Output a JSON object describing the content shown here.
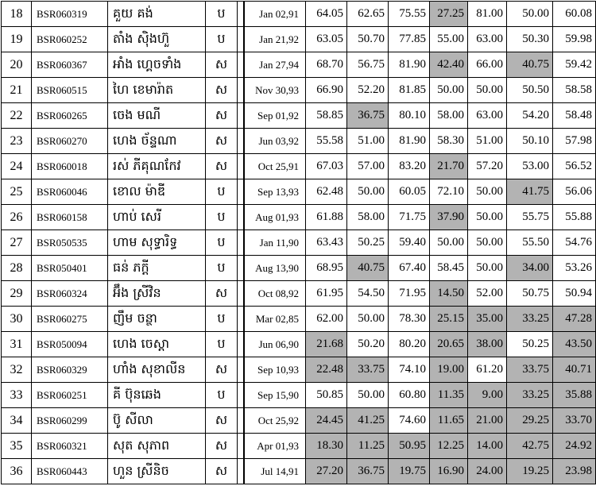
{
  "rows": [
    {
      "no": "18",
      "id": "BSR060319",
      "name": "គួយ គង់",
      "sex": "ប",
      "dob": "Jan 02,91",
      "scores": [
        "64.05",
        "62.65",
        "75.55",
        "27.25",
        "81.00",
        "50.00",
        "60.08"
      ],
      "hl": [
        3
      ]
    },
    {
      "no": "19",
      "id": "BSR060252",
      "name": "តាំង ស៊ិងហ៊ួ",
      "sex": "ប",
      "dob": "Jan 21,92",
      "scores": [
        "63.05",
        "50.70",
        "77.85",
        "55.00",
        "63.00",
        "50.30",
        "59.98"
      ],
      "hl": []
    },
    {
      "no": "20",
      "id": "BSR060367",
      "name": "អាំង ហ្គេចទាំង",
      "sex": "ស",
      "dob": "Jan 27,94",
      "scores": [
        "68.70",
        "56.75",
        "81.90",
        "42.40",
        "66.00",
        "40.75",
        "59.42"
      ],
      "hl": [
        3,
        5
      ]
    },
    {
      "no": "21",
      "id": "BSR060515",
      "name": "ហៃ ខេមារ៉ាត",
      "sex": "ស",
      "dob": "Nov 30,93",
      "scores": [
        "66.90",
        "52.20",
        "81.85",
        "50.00",
        "50.00",
        "50.50",
        "58.58"
      ],
      "hl": []
    },
    {
      "no": "22",
      "id": "BSR060265",
      "name": "ចេង មណី",
      "sex": "ស",
      "dob": "Sep 01,92",
      "scores": [
        "58.85",
        "36.75",
        "80.10",
        "58.00",
        "63.00",
        "54.20",
        "58.48"
      ],
      "hl": [
        1
      ]
    },
    {
      "no": "23",
      "id": "BSR060270",
      "name": "ហេង ច័ន្ទណា",
      "sex": "ស",
      "dob": "Jun 03,92",
      "scores": [
        "55.58",
        "51.00",
        "81.90",
        "58.30",
        "51.00",
        "50.10",
        "57.98"
      ],
      "hl": []
    },
    {
      "no": "24",
      "id": "BSR060018",
      "name": "រស់ ភីគុណកែវ",
      "sex": "ស",
      "dob": "Oct 25,91",
      "scores": [
        "67.03",
        "57.00",
        "83.20",
        "21.70",
        "57.20",
        "53.00",
        "56.52"
      ],
      "hl": [
        3
      ]
    },
    {
      "no": "25",
      "id": "BSR060046",
      "name": "ខោល ម៉ាឌី",
      "sex": "ប",
      "dob": "Sep 13,93",
      "scores": [
        "62.48",
        "50.00",
        "60.05",
        "72.10",
        "50.00",
        "41.75",
        "56.06"
      ],
      "hl": [
        5
      ]
    },
    {
      "no": "26",
      "id": "BSR060158",
      "name": "ហាប់ សេរី",
      "sex": "ប",
      "dob": "Aug 01,93",
      "scores": [
        "61.88",
        "58.00",
        "71.75",
        "37.90",
        "50.00",
        "55.75",
        "55.88"
      ],
      "hl": [
        3
      ]
    },
    {
      "no": "27",
      "id": "BSR050535",
      "name": "ហាម សុទ្ធារិទ្ធ",
      "sex": "ប",
      "dob": "Jan 11,90",
      "scores": [
        "63.43",
        "50.25",
        "59.40",
        "50.00",
        "50.00",
        "55.50",
        "54.76"
      ],
      "hl": []
    },
    {
      "no": "28",
      "id": "BSR050401",
      "name": "ធន់ ភក្តី",
      "sex": "ប",
      "dob": "Aug 13,90",
      "scores": [
        "68.95",
        "40.75",
        "67.40",
        "58.45",
        "50.00",
        "34.00",
        "53.26"
      ],
      "hl": [
        1,
        5
      ]
    },
    {
      "no": "29",
      "id": "BSR060324",
      "name": "អ៊ឹង ស្រីវិន",
      "sex": "ស",
      "dob": "Oct 08,92",
      "scores": [
        "61.95",
        "54.50",
        "71.95",
        "14.50",
        "52.00",
        "50.75",
        "50.94"
      ],
      "hl": [
        3
      ]
    },
    {
      "no": "30",
      "id": "BSR060275",
      "name": "ញឹម ចន្ថា",
      "sex": "ប",
      "dob": "Mar 02,85",
      "scores": [
        "62.00",
        "50.00",
        "78.30",
        "25.15",
        "35.00",
        "33.25",
        "47.28"
      ],
      "hl": [
        3,
        4,
        5,
        6
      ]
    },
    {
      "no": "31",
      "id": "BSR050094",
      "name": "ហេង ចេស្តា",
      "sex": "ប",
      "dob": "Jun 06,90",
      "scores": [
        "21.68",
        "50.20",
        "80.20",
        "20.65",
        "38.00",
        "50.25",
        "43.50"
      ],
      "hl": [
        0,
        3,
        4,
        6
      ]
    },
    {
      "no": "32",
      "id": "BSR060329",
      "name": "ហាំង សុខាលីន",
      "sex": "ស",
      "dob": "Sep 10,93",
      "scores": [
        "22.48",
        "33.75",
        "74.10",
        "19.00",
        "61.20",
        "33.75",
        "40.71"
      ],
      "hl": [
        0,
        1,
        3,
        5,
        6
      ]
    },
    {
      "no": "33",
      "id": "BSR060251",
      "name": "គី ប៊ុនឆេង",
      "sex": "ប",
      "dob": "Sep 15,90",
      "scores": [
        "50.85",
        "50.00",
        "60.80",
        "11.35",
        "9.00",
        "33.25",
        "35.88"
      ],
      "hl": [
        3,
        4,
        5,
        6
      ]
    },
    {
      "no": "34",
      "id": "BSR060299",
      "name": "ប៊ូ សីលា",
      "sex": "ស",
      "dob": "Oct 25,92",
      "scores": [
        "24.45",
        "41.25",
        "74.60",
        "11.65",
        "21.00",
        "29.25",
        "33.70"
      ],
      "hl": [
        0,
        1,
        3,
        4,
        5,
        6
      ]
    },
    {
      "no": "35",
      "id": "BSR060321",
      "name": "សុត សុភាព",
      "sex": "ស",
      "dob": "Apr 01,93",
      "scores": [
        "18.30",
        "11.25",
        "50.95",
        "12.25",
        "14.00",
        "42.75",
        "24.92"
      ],
      "hl": [
        0,
        1,
        2,
        3,
        4,
        5,
        6
      ]
    },
    {
      "no": "36",
      "id": "BSR060443",
      "name": "ហួន ស្រីនិច",
      "sex": "ស",
      "dob": "Jul 14,91",
      "scores": [
        "27.20",
        "36.75",
        "19.75",
        "16.90",
        "24.00",
        "19.25",
        "23.98"
      ],
      "hl": [
        0,
        1,
        2,
        3,
        4,
        5,
        6
      ]
    }
  ],
  "highlight_color": "#b3b3b3"
}
